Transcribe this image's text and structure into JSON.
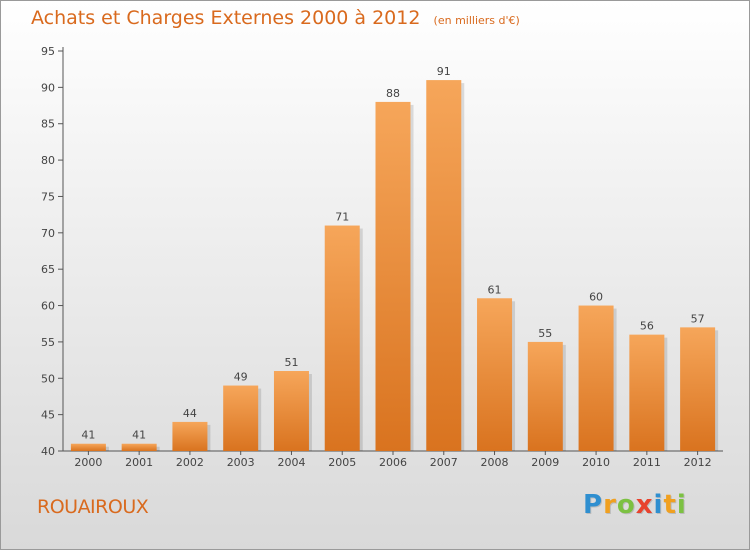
{
  "chart_data": {
    "type": "bar",
    "title": "Achats et Charges Externes 2000 à 2012",
    "subtitle": "(en milliers d'€)",
    "categories": [
      "2000",
      "2001",
      "2002",
      "2003",
      "2004",
      "2005",
      "2006",
      "2007",
      "2008",
      "2009",
      "2010",
      "2011",
      "2012"
    ],
    "values": [
      41,
      41,
      44,
      49,
      51,
      71,
      88,
      91,
      61,
      55,
      60,
      56,
      57
    ],
    "ylim": [
      40,
      95
    ],
    "yticks": [
      40,
      45,
      50,
      55,
      60,
      65,
      70,
      75,
      80,
      85,
      90,
      95
    ],
    "xlabel": "",
    "ylabel": "",
    "grid": false,
    "bar_color_top": "#f6a65a",
    "bar_color_bottom": "#d9731f"
  },
  "place": {
    "name": "ROUAIROUX"
  },
  "logo": {
    "text": "Proxiti",
    "letters": [
      {
        "ch": "P",
        "color": "#2f8fd0"
      },
      {
        "ch": "r",
        "color": "#f0a020"
      },
      {
        "ch": "o",
        "color": "#7cc142"
      },
      {
        "ch": "x",
        "color": "#e8432e"
      },
      {
        "ch": "i",
        "color": "#2f8fd0"
      },
      {
        "ch": "t",
        "color": "#f0a020"
      },
      {
        "ch": "i",
        "color": "#7cc142"
      }
    ]
  },
  "colors": {
    "accent": "#d96a1e",
    "axis": "#555555"
  }
}
